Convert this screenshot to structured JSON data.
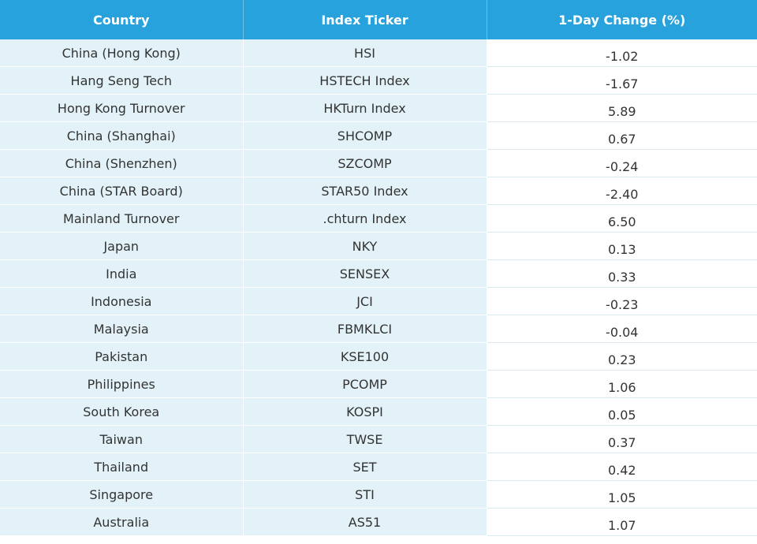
{
  "table": {
    "header": [
      "Country",
      "Index Ticker",
      "1-Day Change (%)"
    ],
    "rows": [
      [
        "China (Hong Kong)",
        "HSI",
        "-1.02"
      ],
      [
        "Hang Seng Tech",
        "HSTECH Index",
        "-1.67"
      ],
      [
        "Hong Kong Turnover",
        "HKTurn Index",
        "5.89"
      ],
      [
        "China (Shanghai)",
        "SHCOMP",
        "0.67"
      ],
      [
        "China (Shenzhen)",
        "SZCOMP",
        "-0.24"
      ],
      [
        "China (STAR Board)",
        "STAR50 Index",
        "-2.40"
      ],
      [
        "Mainland Turnover",
        ".chturn Index",
        "6.50"
      ],
      [
        "Japan",
        "NKY",
        "0.13"
      ],
      [
        "India",
        "SENSEX",
        "0.33"
      ],
      [
        "Indonesia",
        "JCI",
        "-0.23"
      ],
      [
        "Malaysia",
        "FBMKLCI",
        "-0.04"
      ],
      [
        "Pakistan",
        "KSE100",
        "0.23"
      ],
      [
        "Philippines",
        "PCOMP",
        "1.06"
      ],
      [
        "South Korea",
        "KOSPI",
        "0.05"
      ],
      [
        "Taiwan",
        "TWSE",
        "0.37"
      ],
      [
        "Thailand",
        "SET",
        "0.42"
      ],
      [
        "Singapore",
        "STI",
        "1.05"
      ],
      [
        "Australia",
        "AS51",
        "1.07"
      ]
    ]
  }
}
